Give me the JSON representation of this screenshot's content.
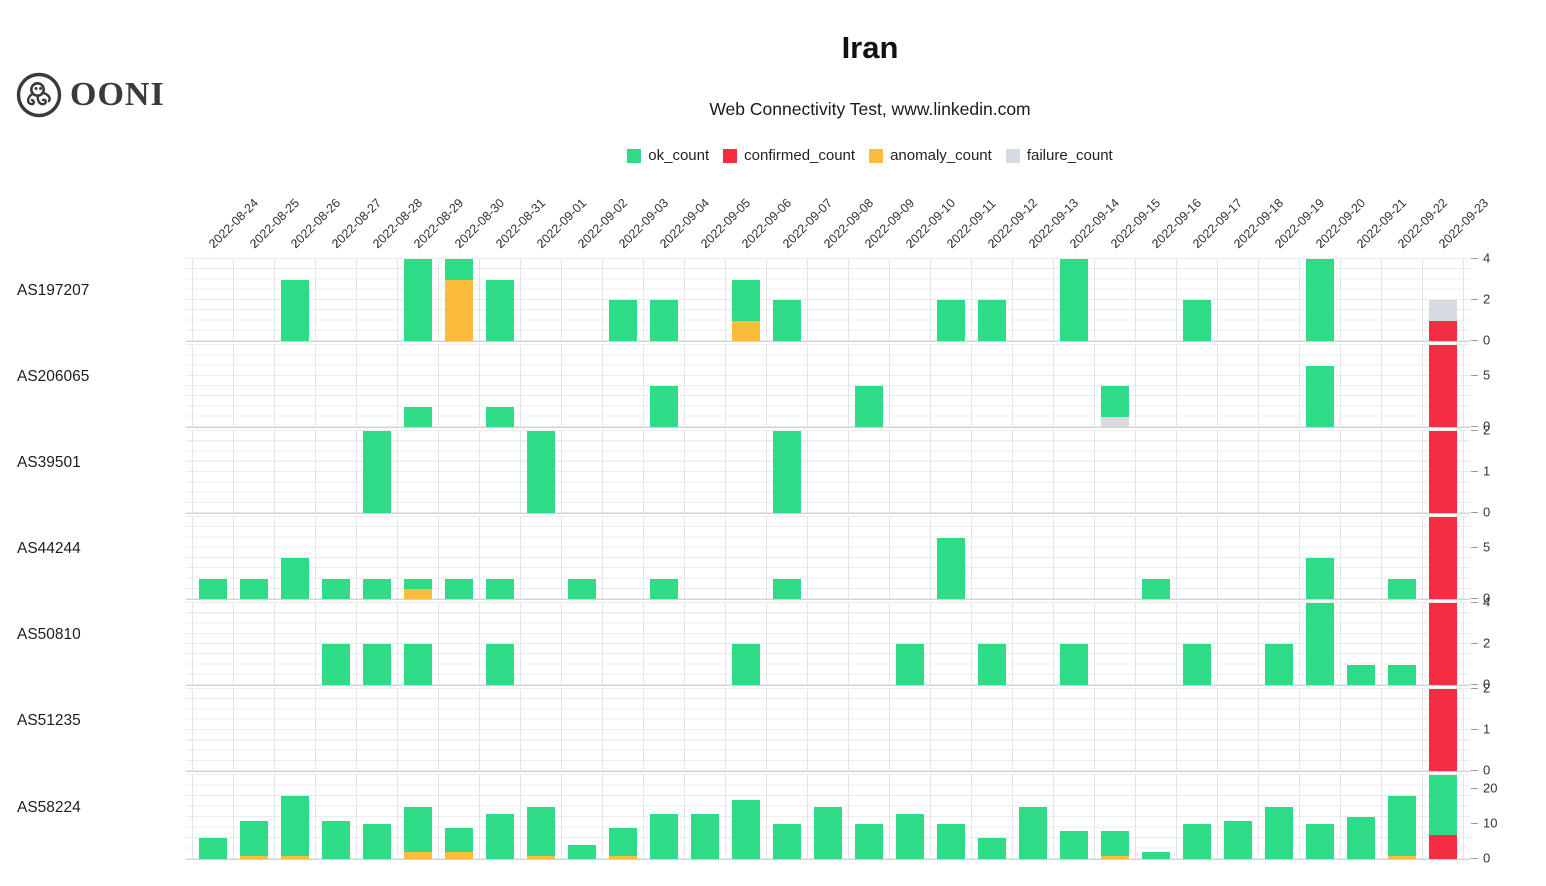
{
  "header": {
    "logo_text": "OONI",
    "title": "Iran",
    "subtitle": "Web Connectivity Test, www.linkedin.com"
  },
  "legend": [
    {
      "key": "ok",
      "label": "ok_count",
      "color": "#2edb87"
    },
    {
      "key": "confirmed",
      "label": "confirmed_count",
      "color": "#f42d42"
    },
    {
      "key": "anomaly",
      "label": "anomaly_count",
      "color": "#fbbc3c"
    },
    {
      "key": "failure",
      "label": "failure_count",
      "color": "#d7dce3"
    }
  ],
  "chart_data": {
    "type": "bar",
    "stacked": true,
    "stack_order_bottom_to_top": [
      "confirmed",
      "anomaly",
      "failure",
      "ok"
    ],
    "title": "Iran",
    "subtitle": "Web Connectivity Test, www.linkedin.com",
    "legend_entries": [
      "ok_count",
      "confirmed_count",
      "anomaly_count",
      "failure_count"
    ],
    "grid": true,
    "x_dates": [
      "2022-08-24",
      "2022-08-25",
      "2022-08-26",
      "2022-08-27",
      "2022-08-28",
      "2022-08-29",
      "2022-08-30",
      "2022-08-31",
      "2022-09-01",
      "2022-09-02",
      "2022-09-03",
      "2022-09-04",
      "2022-09-05",
      "2022-09-06",
      "2022-09-07",
      "2022-09-08",
      "2022-09-09",
      "2022-09-10",
      "2022-09-11",
      "2022-09-12",
      "2022-09-13",
      "2022-09-14",
      "2022-09-15",
      "2022-09-16",
      "2022-09-17",
      "2022-09-18",
      "2022-09-19",
      "2022-09-20",
      "2022-09-21",
      "2022-09-22",
      "2022-09-23"
    ],
    "panels": [
      {
        "as_label": "AS197207",
        "ylim": [
          0,
          4
        ],
        "yticks": [
          0,
          2,
          4
        ],
        "bars": [
          {
            "date": "2022-08-26",
            "ok": 3
          },
          {
            "date": "2022-08-29",
            "ok": 4
          },
          {
            "date": "2022-08-30",
            "anomaly": 3,
            "ok": 1
          },
          {
            "date": "2022-08-31",
            "ok": 3
          },
          {
            "date": "2022-09-03",
            "ok": 2
          },
          {
            "date": "2022-09-04",
            "ok": 2
          },
          {
            "date": "2022-09-06",
            "anomaly": 1,
            "ok": 2
          },
          {
            "date": "2022-09-07",
            "ok": 2
          },
          {
            "date": "2022-09-11",
            "ok": 2
          },
          {
            "date": "2022-09-12",
            "ok": 2
          },
          {
            "date": "2022-09-14",
            "ok": 4
          },
          {
            "date": "2022-09-17",
            "ok": 2
          },
          {
            "date": "2022-09-20",
            "ok": 4
          },
          {
            "date": "2022-09-23",
            "confirmed": 1,
            "failure": 1
          }
        ]
      },
      {
        "as_label": "AS206065",
        "ylim": [
          0,
          8
        ],
        "yticks": [
          0,
          5
        ],
        "bars": [
          {
            "date": "2022-08-29",
            "ok": 2
          },
          {
            "date": "2022-08-31",
            "ok": 2
          },
          {
            "date": "2022-09-04",
            "ok": 4
          },
          {
            "date": "2022-09-09",
            "ok": 4
          },
          {
            "date": "2022-09-15",
            "failure": 1,
            "ok": 3
          },
          {
            "date": "2022-09-20",
            "ok": 6
          },
          {
            "date": "2022-09-23",
            "confirmed": 8
          }
        ]
      },
      {
        "as_label": "AS39501",
        "ylim": [
          0,
          2
        ],
        "yticks": [
          0,
          1,
          2
        ],
        "bars": [
          {
            "date": "2022-08-28",
            "ok": 2
          },
          {
            "date": "2022-09-01",
            "ok": 2
          },
          {
            "date": "2022-09-07",
            "ok": 2
          },
          {
            "date": "2022-09-23",
            "confirmed": 2
          }
        ]
      },
      {
        "as_label": "AS44244",
        "ylim": [
          0,
          8
        ],
        "yticks": [
          0,
          5
        ],
        "bars": [
          {
            "date": "2022-08-24",
            "ok": 2
          },
          {
            "date": "2022-08-25",
            "ok": 2
          },
          {
            "date": "2022-08-26",
            "ok": 4
          },
          {
            "date": "2022-08-27",
            "ok": 2
          },
          {
            "date": "2022-08-28",
            "ok": 2
          },
          {
            "date": "2022-08-29",
            "anomaly": 1,
            "ok": 1
          },
          {
            "date": "2022-08-30",
            "ok": 2
          },
          {
            "date": "2022-08-31",
            "ok": 2
          },
          {
            "date": "2022-09-02",
            "ok": 2
          },
          {
            "date": "2022-09-04",
            "ok": 2
          },
          {
            "date": "2022-09-07",
            "ok": 2
          },
          {
            "date": "2022-09-11",
            "ok": 6
          },
          {
            "date": "2022-09-16",
            "ok": 2
          },
          {
            "date": "2022-09-20",
            "ok": 4
          },
          {
            "date": "2022-09-22",
            "ok": 2
          },
          {
            "date": "2022-09-23",
            "confirmed": 8
          }
        ]
      },
      {
        "as_label": "AS50810",
        "ylim": [
          0,
          4
        ],
        "yticks": [
          0,
          2,
          4
        ],
        "bars": [
          {
            "date": "2022-08-27",
            "ok": 2
          },
          {
            "date": "2022-08-28",
            "ok": 2
          },
          {
            "date": "2022-08-29",
            "ok": 2
          },
          {
            "date": "2022-08-31",
            "ok": 2
          },
          {
            "date": "2022-09-06",
            "ok": 2
          },
          {
            "date": "2022-09-10",
            "ok": 2
          },
          {
            "date": "2022-09-12",
            "ok": 2
          },
          {
            "date": "2022-09-14",
            "ok": 2
          },
          {
            "date": "2022-09-17",
            "ok": 2
          },
          {
            "date": "2022-09-19",
            "ok": 2
          },
          {
            "date": "2022-09-20",
            "ok": 4
          },
          {
            "date": "2022-09-21",
            "ok": 1
          },
          {
            "date": "2022-09-22",
            "ok": 1
          },
          {
            "date": "2022-09-23",
            "confirmed": 4
          }
        ]
      },
      {
        "as_label": "AS51235",
        "ylim": [
          0,
          2
        ],
        "yticks": [
          0,
          1,
          2
        ],
        "bars": [
          {
            "date": "2022-09-23",
            "confirmed": 2
          }
        ]
      },
      {
        "as_label": "AS58224",
        "ylim": [
          0,
          24
        ],
        "yticks": [
          0,
          10,
          20
        ],
        "bars": [
          {
            "date": "2022-08-24",
            "ok": 6
          },
          {
            "date": "2022-08-25",
            "anomaly": 1,
            "ok": 10
          },
          {
            "date": "2022-08-26",
            "anomaly": 1,
            "ok": 17
          },
          {
            "date": "2022-08-27",
            "ok": 11
          },
          {
            "date": "2022-08-28",
            "ok": 10
          },
          {
            "date": "2022-08-29",
            "anomaly": 2,
            "ok": 13
          },
          {
            "date": "2022-08-30",
            "anomaly": 2,
            "ok": 7
          },
          {
            "date": "2022-08-31",
            "ok": 13
          },
          {
            "date": "2022-09-01",
            "anomaly": 1,
            "ok": 14
          },
          {
            "date": "2022-09-02",
            "ok": 4
          },
          {
            "date": "2022-09-03",
            "anomaly": 1,
            "ok": 8
          },
          {
            "date": "2022-09-04",
            "ok": 13
          },
          {
            "date": "2022-09-05",
            "ok": 13
          },
          {
            "date": "2022-09-06",
            "ok": 17
          },
          {
            "date": "2022-09-07",
            "ok": 10
          },
          {
            "date": "2022-09-08",
            "ok": 15
          },
          {
            "date": "2022-09-09",
            "ok": 10
          },
          {
            "date": "2022-09-10",
            "ok": 13
          },
          {
            "date": "2022-09-11",
            "ok": 10
          },
          {
            "date": "2022-09-12",
            "ok": 6
          },
          {
            "date": "2022-09-13",
            "ok": 15
          },
          {
            "date": "2022-09-14",
            "ok": 8
          },
          {
            "date": "2022-09-15",
            "anomaly": 1,
            "ok": 7
          },
          {
            "date": "2022-09-16",
            "ok": 2
          },
          {
            "date": "2022-09-17",
            "ok": 10
          },
          {
            "date": "2022-09-18",
            "ok": 11
          },
          {
            "date": "2022-09-19",
            "ok": 15
          },
          {
            "date": "2022-09-20",
            "ok": 10
          },
          {
            "date": "2022-09-21",
            "ok": 12
          },
          {
            "date": "2022-09-22",
            "anomaly": 1,
            "ok": 17
          },
          {
            "date": "2022-09-23",
            "confirmed": 7,
            "ok": 17
          }
        ]
      }
    ]
  }
}
